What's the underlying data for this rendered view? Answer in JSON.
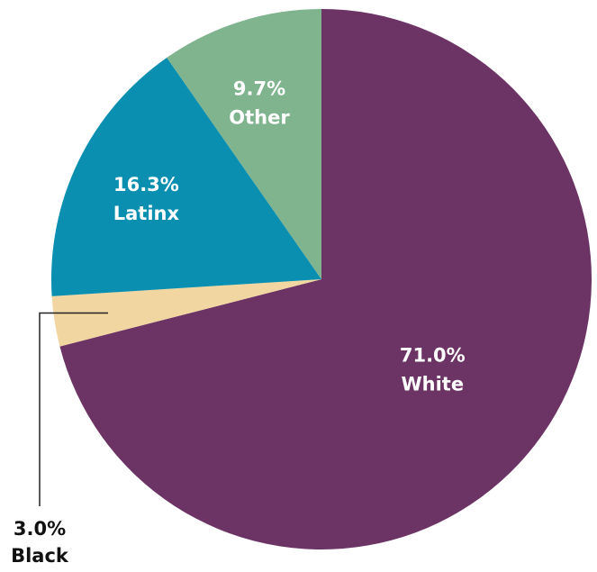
{
  "chart_data": {
    "type": "pie",
    "start_angle_deg": 0,
    "direction": "clockwise",
    "slices": [
      {
        "key": "white",
        "label": "White",
        "value": 71.0,
        "value_label": "71.0%",
        "color": "#6c3465",
        "label_color": "#ffffff"
      },
      {
        "key": "black",
        "label": "Black",
        "value": 3.0,
        "value_label": "3.0%",
        "color": "#f2d6a1",
        "label_color": "#111111",
        "callout": true
      },
      {
        "key": "latinx",
        "label": "Latinx",
        "value": 16.3,
        "value_label": "16.3%",
        "color": "#0a8fb0",
        "label_color": "#ffffff"
      },
      {
        "key": "other",
        "label": "Other",
        "value": 9.7,
        "value_label": "9.7%",
        "color": "#7fb48e",
        "label_color": "#ffffff"
      }
    ]
  }
}
